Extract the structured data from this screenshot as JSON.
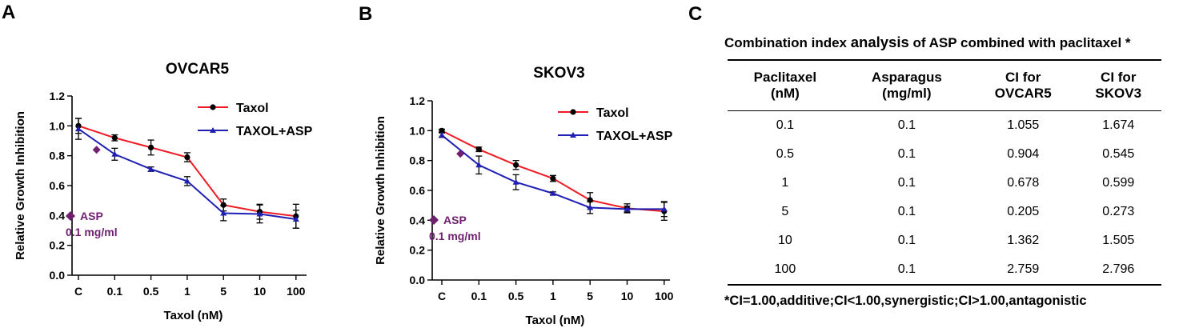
{
  "panels": {
    "a": "A",
    "b": "B",
    "c": "C"
  },
  "colors": {
    "taxol": "#ee1c25",
    "combo": "#1f1fb4",
    "asp": "#6e1f6e",
    "axis": "#000000"
  },
  "chart_data": [
    {
      "type": "line",
      "title": "OVCAR5",
      "xlabel": "Taxol (nM)",
      "ylabel": "Relative Growth Inhibition",
      "categories": [
        "C",
        "0.1",
        "0.5",
        "1",
        "5",
        "10",
        "100"
      ],
      "ylim": [
        0,
        1.2
      ],
      "yticks": [
        "0.0",
        "0.2",
        "0.4",
        "0.6",
        "0.8",
        "1.0",
        "1.2"
      ],
      "series": [
        {
          "name": "Taxol",
          "marker": "circle",
          "values": [
            1.0,
            0.92,
            0.855,
            0.79,
            0.47,
            0.425,
            0.395
          ],
          "errors": [
            0.05,
            0.02,
            0.05,
            0.03,
            0.04,
            0.05,
            0.08
          ]
        },
        {
          "name": "TAXOL+ASP",
          "marker": "triangle",
          "values": [
            0.98,
            0.81,
            0.71,
            0.63,
            0.415,
            0.41,
            0.375
          ],
          "errors": [
            0.07,
            0.04,
            0.015,
            0.03,
            0.05,
            0.06,
            0.06
          ]
        }
      ],
      "asp_point": {
        "label": "ASP",
        "sublabel": "0.1 mg/ml",
        "x_position": 0.5,
        "value": 0.84
      }
    },
    {
      "type": "line",
      "title": "SKOV3",
      "xlabel": "Taxol (nM)",
      "ylabel": "Relative Growth Inhibition",
      "categories": [
        "C",
        "0.1",
        "0.5",
        "1",
        "5",
        "10",
        "100"
      ],
      "ylim": [
        0,
        1.2
      ],
      "yticks": [
        "0.0",
        "0.2",
        "0.4",
        "0.6",
        "0.8",
        "1.0",
        "1.2"
      ],
      "series": [
        {
          "name": "Taxol",
          "marker": "circle",
          "values": [
            1.0,
            0.875,
            0.77,
            0.68,
            0.535,
            0.48,
            0.46
          ],
          "errors": [
            0.01,
            0.015,
            0.03,
            0.02,
            0.05,
            0.03,
            0.06
          ]
        },
        {
          "name": "TAXOL+ASP",
          "marker": "triangle",
          "values": [
            0.97,
            0.77,
            0.655,
            0.58,
            0.485,
            0.475,
            0.475
          ],
          "errors": [
            0.015,
            0.06,
            0.05,
            0.01,
            0.04,
            0.02,
            0.05
          ]
        }
      ],
      "asp_point": {
        "label": "ASP",
        "sublabel": "0.1 mg/ml",
        "x_position": 0.5,
        "value": 0.845
      }
    }
  ],
  "ci_table": {
    "title_pre": "Combination index ",
    "title_emph": "analysis",
    "title_post": " of ASP combined with paclitaxel *",
    "headers": [
      {
        "line1": "Paclitaxel",
        "line2": "(nM)"
      },
      {
        "line1": "Asparagus",
        "line2": "(mg/ml)"
      },
      {
        "line1": "CI for",
        "line2": "OVCAR5"
      },
      {
        "line1": "CI for",
        "line2": "SKOV3"
      }
    ],
    "rows": [
      [
        "0.1",
        "0.1",
        "1.055",
        "1.674"
      ],
      [
        "0.5",
        "0.1",
        "0.904",
        "0.545"
      ],
      [
        "1",
        "0.1",
        "0.678",
        "0.599"
      ],
      [
        "5",
        "0.1",
        "0.205",
        "0.273"
      ],
      [
        "10",
        "0.1",
        "1.362",
        "1.505"
      ],
      [
        "100",
        "0.1",
        "2.759",
        "2.796"
      ]
    ],
    "footnote": "*CI=1.00,additive;CI<1.00,synergistic;CI>1.00,antagonistic"
  }
}
